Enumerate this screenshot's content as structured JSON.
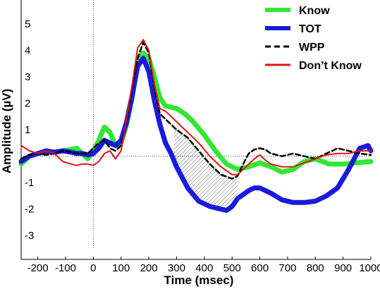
{
  "chart_data": {
    "type": "line",
    "title": "",
    "xlabel": "Time (msec)",
    "ylabel": "Amplitude (µV)",
    "xlim": [
      -260,
      1000
    ],
    "ylim": [
      -3.9,
      5.9
    ],
    "x_ticks": [
      -200,
      -100,
      0,
      100,
      200,
      300,
      400,
      500,
      600,
      700,
      800,
      900,
      1000
    ],
    "y_ticks": [
      -3,
      -2,
      -1,
      1,
      2,
      3,
      4,
      5
    ],
    "reference_lines": {
      "horizontal_y": 0,
      "vertical_x": 0
    },
    "legend_position": "top-right",
    "shaded_region": {
      "x_start": 290,
      "x_end": 520,
      "between": [
        "WPP",
        "TOT"
      ],
      "pattern": "hatched"
    },
    "series": [
      {
        "name": "Know",
        "color": "#33e633",
        "dashed": false,
        "x": [
          -260,
          -230,
          -200,
          -170,
          -140,
          -110,
          -80,
          -60,
          -40,
          -20,
          0,
          20,
          40,
          60,
          80,
          100,
          120,
          140,
          160,
          180,
          200,
          220,
          240,
          260,
          280,
          300,
          330,
          360,
          400,
          440,
          480,
          520,
          560,
          600,
          640,
          680,
          720,
          760,
          800,
          850,
          900,
          950,
          1000
        ],
        "y": [
          -0.3,
          0.0,
          0.1,
          0.15,
          0.15,
          0.2,
          0.25,
          0.3,
          0.1,
          -0.1,
          0.2,
          0.6,
          1.1,
          0.9,
          0.4,
          0.5,
          1.2,
          2.2,
          3.5,
          3.9,
          3.7,
          3.0,
          2.2,
          1.9,
          1.85,
          1.8,
          1.6,
          1.3,
          0.8,
          0.2,
          -0.3,
          -0.5,
          -0.4,
          -0.25,
          -0.4,
          -0.6,
          -0.5,
          -0.2,
          -0.1,
          -0.3,
          -0.3,
          -0.25,
          -0.2
        ]
      },
      {
        "name": "TOT",
        "color": "#1a1adc",
        "dashed": false,
        "x": [
          -260,
          -230,
          -200,
          -170,
          -140,
          -110,
          -80,
          -60,
          -40,
          -20,
          0,
          20,
          40,
          60,
          80,
          100,
          120,
          140,
          160,
          180,
          200,
          220,
          240,
          260,
          280,
          300,
          340,
          380,
          420,
          460,
          480,
          500,
          520,
          560,
          580,
          600,
          640,
          680,
          720,
          760,
          800,
          840,
          880,
          920,
          960,
          990,
          1000
        ],
        "y": [
          -0.2,
          0.0,
          0.1,
          0.2,
          0.15,
          0.2,
          0.15,
          0.1,
          0.1,
          0.05,
          0.1,
          0.3,
          0.6,
          0.5,
          0.4,
          0.6,
          1.3,
          2.3,
          3.4,
          3.7,
          3.2,
          2.1,
          1.2,
          0.5,
          0.1,
          -0.4,
          -1.2,
          -1.7,
          -1.9,
          -2.0,
          -2.05,
          -1.9,
          -1.6,
          -1.3,
          -1.2,
          -1.2,
          -1.4,
          -1.65,
          -1.75,
          -1.75,
          -1.7,
          -1.5,
          -1.2,
          -0.5,
          0.3,
          0.4,
          0.2
        ]
      },
      {
        "name": "WPP",
        "color": "#000000",
        "dashed": true,
        "x": [
          -260,
          -230,
          -200,
          -170,
          -140,
          -110,
          -80,
          -60,
          -40,
          -20,
          0,
          20,
          40,
          60,
          80,
          100,
          120,
          140,
          160,
          180,
          200,
          220,
          240,
          260,
          280,
          300,
          340,
          380,
          420,
          460,
          500,
          520,
          540,
          560,
          580,
          600,
          620,
          640,
          680,
          720,
          760,
          800,
          840,
          880,
          920,
          960,
          1000
        ],
        "y": [
          -0.1,
          0.05,
          0.1,
          0.05,
          0.1,
          0.2,
          0.15,
          0.1,
          0.1,
          0.1,
          0.3,
          0.5,
          0.6,
          0.3,
          0.2,
          0.4,
          1.3,
          2.6,
          3.7,
          4.3,
          3.9,
          2.6,
          1.6,
          1.4,
          1.2,
          1.0,
          0.7,
          0.2,
          -0.3,
          -0.7,
          -0.85,
          -0.75,
          -0.3,
          0.1,
          0.25,
          0.3,
          0.25,
          0.1,
          0.0,
          0.1,
          0.0,
          -0.1,
          0.1,
          0.3,
          0.2,
          0.1,
          0.05
        ]
      },
      {
        "name": "Don’t Know",
        "color": "#e01414",
        "dashed": false,
        "x": [
          -260,
          -230,
          -200,
          -170,
          -140,
          -110,
          -80,
          -60,
          -40,
          -20,
          0,
          20,
          40,
          60,
          80,
          100,
          120,
          140,
          160,
          180,
          200,
          220,
          240,
          260,
          280,
          300,
          340,
          380,
          420,
          460,
          500,
          520,
          540,
          560,
          580,
          600,
          620,
          640,
          680,
          720,
          760,
          800,
          840,
          880,
          920,
          960,
          1000
        ],
        "y": [
          0.4,
          0.2,
          0.1,
          0.2,
          0.1,
          -0.2,
          -0.3,
          -0.35,
          -0.3,
          -0.3,
          -0.35,
          -0.2,
          0.1,
          0.2,
          -0.1,
          0.2,
          1.4,
          2.7,
          4.1,
          4.4,
          4.0,
          2.7,
          1.8,
          1.7,
          1.5,
          1.3,
          0.9,
          0.5,
          0.0,
          -0.4,
          -0.7,
          -0.7,
          -0.5,
          -0.3,
          -0.1,
          0.05,
          -0.15,
          -0.3,
          -0.4,
          -0.4,
          -0.25,
          -0.1,
          0.05,
          0.1,
          0.1,
          0.2,
          0.2
        ]
      }
    ]
  }
}
